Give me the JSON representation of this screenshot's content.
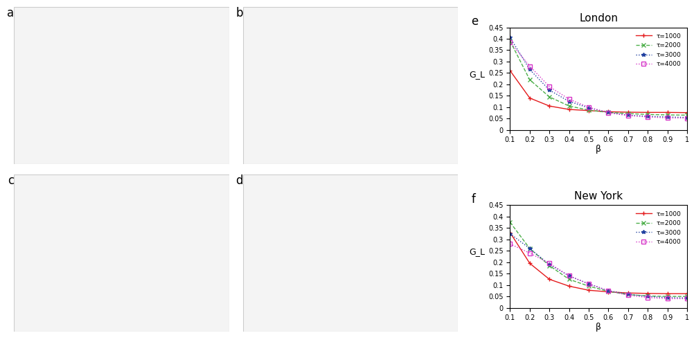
{
  "panels": [
    "a",
    "b",
    "c",
    "d"
  ],
  "chart_data": [
    {
      "type": "line",
      "panel": "e",
      "title": "London",
      "x_label": "β",
      "y_label": "G_L",
      "x": [
        0.1,
        0.2,
        0.3,
        0.4,
        0.5,
        0.6,
        0.7,
        0.8,
        0.9,
        1.0
      ],
      "xlim": [
        0.1,
        1
      ],
      "xticks": [
        0.1,
        0.2,
        0.3,
        0.4,
        0.5,
        0.6,
        0.7,
        0.8,
        0.9,
        1
      ],
      "ylim": [
        0,
        0.45
      ],
      "yticks": [
        0,
        0.05,
        0.1,
        0.15,
        0.2,
        0.25,
        0.3,
        0.35,
        0.4,
        0.45
      ],
      "legend": "upper right",
      "series": [
        {
          "name": "τ=1000",
          "color": "#e41a1c",
          "marker": "+",
          "line_style": "solid",
          "values": [
            0.26,
            0.14,
            0.105,
            0.09,
            0.085,
            0.08,
            0.078,
            0.077,
            0.077,
            0.076
          ]
        },
        {
          "name": "τ=2000",
          "color": "#4daf4a",
          "marker": "x",
          "line_style": "dashed",
          "values": [
            0.39,
            0.22,
            0.145,
            0.105,
            0.087,
            0.077,
            0.072,
            0.068,
            0.066,
            0.065
          ]
        },
        {
          "name": "τ=3000",
          "color": "#1f3f9f",
          "marker": "*",
          "line_style": "dotted",
          "values": [
            0.405,
            0.265,
            0.175,
            0.125,
            0.097,
            0.077,
            0.065,
            0.06,
            0.057,
            0.055
          ]
        },
        {
          "name": "τ=4000",
          "color": "#d633c8",
          "marker": "s",
          "line_style": "dotted",
          "values": [
            0.385,
            0.28,
            0.19,
            0.135,
            0.1,
            0.075,
            0.063,
            0.057,
            0.053,
            0.052
          ]
        }
      ]
    },
    {
      "type": "line",
      "panel": "f",
      "title": "New York",
      "x_label": "β",
      "y_label": "G_L",
      "x": [
        0.1,
        0.2,
        0.3,
        0.4,
        0.5,
        0.6,
        0.7,
        0.8,
        0.9,
        1.0
      ],
      "xlim": [
        0.1,
        1
      ],
      "xticks": [
        0.1,
        0.2,
        0.3,
        0.4,
        0.5,
        0.6,
        0.7,
        0.8,
        0.9,
        1
      ],
      "ylim": [
        0,
        0.45
      ],
      "yticks": [
        0,
        0.05,
        0.1,
        0.15,
        0.2,
        0.25,
        0.3,
        0.35,
        0.4,
        0.45
      ],
      "legend": "upper right",
      "series": [
        {
          "name": "τ=1000",
          "color": "#e41a1c",
          "marker": "+",
          "line_style": "solid",
          "values": [
            0.33,
            0.195,
            0.125,
            0.095,
            0.077,
            0.07,
            0.065,
            0.063,
            0.062,
            0.062
          ]
        },
        {
          "name": "τ=2000",
          "color": "#4daf4a",
          "marker": "x",
          "line_style": "dashed",
          "values": [
            0.375,
            0.26,
            0.185,
            0.125,
            0.095,
            0.072,
            0.058,
            0.052,
            0.05,
            0.05
          ]
        },
        {
          "name": "τ=3000",
          "color": "#1f3f9f",
          "marker": "*",
          "line_style": "dotted",
          "values": [
            0.325,
            0.26,
            0.19,
            0.14,
            0.105,
            0.075,
            0.06,
            0.05,
            0.045,
            0.043
          ]
        },
        {
          "name": "τ=4000",
          "color": "#d633c8",
          "marker": "s",
          "line_style": "dotted",
          "values": [
            0.28,
            0.24,
            0.195,
            0.14,
            0.105,
            0.075,
            0.055,
            0.045,
            0.04,
            0.04
          ]
        }
      ]
    }
  ]
}
